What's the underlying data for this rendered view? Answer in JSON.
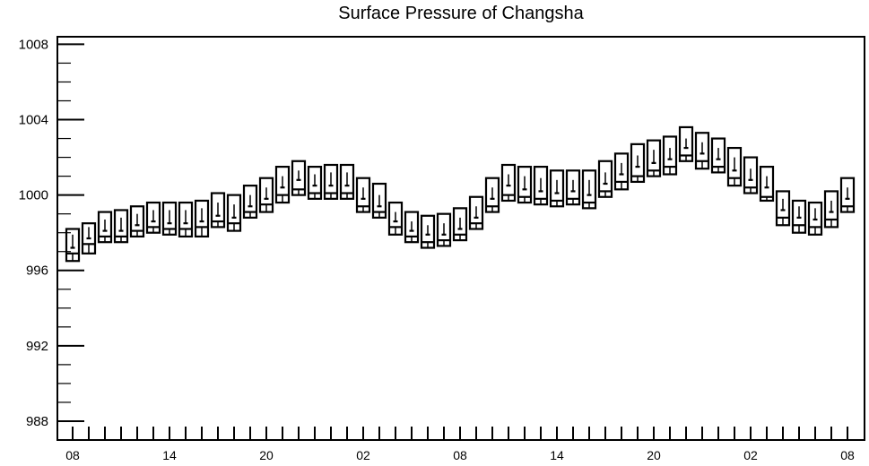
{
  "chart_data": {
    "type": "boxplot",
    "title": "Surface Pressure of Changsha",
    "xlabel": "",
    "ylabel": "",
    "ylim": [
      987,
      1008.4
    ],
    "yticks": [
      988,
      992,
      996,
      1000,
      1004,
      1008
    ],
    "xtick_labels": [
      "08",
      "14",
      "20",
      "02",
      "08",
      "14",
      "20",
      "02",
      "08"
    ],
    "x_hours": [
      0,
      6,
      12,
      18,
      24,
      30,
      36,
      42,
      48
    ],
    "grid": false,
    "series": [
      {
        "x": [
          0,
          1,
          2,
          3,
          4,
          5,
          6,
          7,
          8,
          9,
          10,
          11,
          12,
          13,
          14,
          15,
          16,
          17,
          18,
          19,
          20,
          21,
          22,
          23,
          24,
          25,
          26,
          27,
          28,
          29,
          30,
          31,
          32,
          33,
          34,
          35,
          36,
          37,
          38,
          39,
          40,
          41,
          42,
          43,
          44,
          45,
          46,
          47,
          48
        ],
        "max": [
          998.2,
          998.5,
          999.1,
          999.2,
          999.4,
          999.6,
          999.6,
          999.6,
          999.7,
          1000.1,
          1000.0,
          1000.5,
          1000.9,
          1001.5,
          1001.8,
          1001.5,
          1001.6,
          1001.6,
          1000.9,
          1000.6,
          999.6,
          999.1,
          998.9,
          999.0,
          999.3,
          999.9,
          1000.9,
          1001.6,
          1001.5,
          1001.5,
          1001.3,
          1001.3,
          1001.3,
          1001.8,
          1002.2,
          1002.7,
          1002.9,
          1003.1,
          1003.6,
          1003.3,
          1003.0,
          1002.5,
          1002.0,
          1001.5,
          1000.2,
          999.7,
          999.6,
          1000.2,
          1000.9
        ],
        "q3": [
          997.9,
          998.3,
          998.7,
          998.8,
          999.0,
          999.2,
          999.2,
          999.2,
          999.3,
          999.6,
          999.5,
          1000.0,
          1000.4,
          1001.0,
          1001.3,
          1001.1,
          1001.2,
          1001.2,
          1000.4,
          1000.0,
          999.1,
          998.6,
          998.4,
          998.5,
          998.8,
          999.4,
          1000.4,
          1001.1,
          1001.0,
          1000.9,
          1000.8,
          1000.8,
          1000.8,
          1001.2,
          1001.7,
          1002.1,
          1002.4,
          1002.5,
          1003.0,
          1002.8,
          1002.5,
          1002.0,
          1001.4,
          1001.0,
          999.8,
          999.4,
          999.3,
          999.7,
          1000.4
        ],
        "median": [
          997.2,
          997.7,
          998.1,
          998.1,
          998.4,
          998.6,
          998.5,
          998.5,
          998.6,
          998.9,
          998.8,
          999.4,
          999.8,
          1000.4,
          1000.8,
          1000.5,
          1000.5,
          1000.5,
          999.8,
          999.4,
          998.6,
          998.1,
          997.9,
          997.9,
          998.2,
          998.8,
          999.8,
          1000.5,
          1000.3,
          1000.2,
          1000.1,
          1000.2,
          1000.0,
          1000.6,
          1001.1,
          1001.5,
          1001.7,
          1001.9,
          1002.5,
          1002.2,
          1001.9,
          1001.3,
          1000.8,
          1000.4,
          999.2,
          998.8,
          998.7,
          999.1,
          999.8
        ],
        "q1": [
          996.9,
          997.4,
          997.8,
          997.8,
          998.1,
          998.3,
          998.2,
          998.2,
          998.3,
          998.6,
          998.5,
          999.1,
          999.5,
          1000.0,
          1000.3,
          1000.1,
          1000.1,
          1000.1,
          999.4,
          999.1,
          998.3,
          997.8,
          997.5,
          997.6,
          997.9,
          998.5,
          999.4,
          1000.0,
          999.9,
          999.8,
          999.7,
          999.8,
          999.6,
          1000.2,
          1000.7,
          1001.0,
          1001.3,
          1001.5,
          1002.1,
          1001.8,
          1001.5,
          1000.9,
          1000.4,
          999.9,
          998.8,
          998.4,
          998.3,
          998.7,
          999.4
        ],
        "min": [
          996.5,
          996.9,
          997.5,
          997.5,
          997.8,
          998.0,
          997.9,
          997.8,
          997.8,
          998.3,
          998.1,
          998.8,
          999.1,
          999.6,
          1000.0,
          999.8,
          999.8,
          999.8,
          999.1,
          998.8,
          997.9,
          997.5,
          997.2,
          997.3,
          997.6,
          998.2,
          999.1,
          999.7,
          999.6,
          999.5,
          999.4,
          999.5,
          999.3,
          999.9,
          1000.3,
          1000.7,
          1001.0,
          1001.1,
          1001.8,
          1001.4,
          1001.2,
          1000.5,
          1000.1,
          999.7,
          998.4,
          998.0,
          997.9,
          998.3,
          999.1
        ]
      }
    ]
  }
}
